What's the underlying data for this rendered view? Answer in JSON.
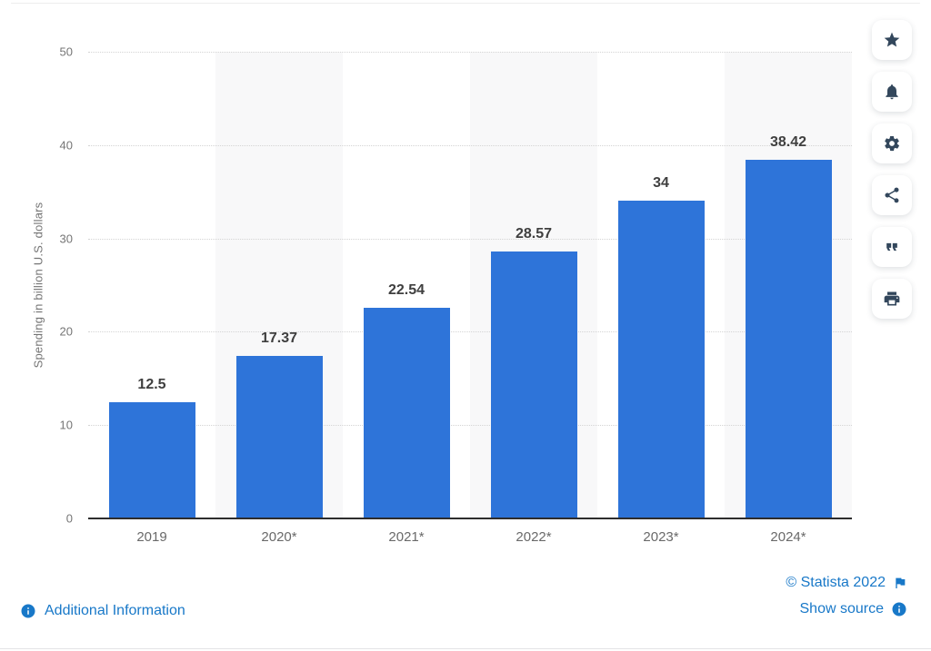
{
  "chart_data": {
    "type": "bar",
    "categories": [
      "2019",
      "2020*",
      "2021*",
      "2022*",
      "2023*",
      "2024*"
    ],
    "values": [
      12.5,
      17.37,
      22.54,
      28.57,
      34,
      38.42
    ],
    "value_labels": [
      "12.5",
      "17.37",
      "22.54",
      "28.57",
      "34",
      "38.42"
    ],
    "title": "",
    "xlabel": "",
    "ylabel": "Spending in billion U.S. dollars",
    "ylim": [
      0,
      50
    ],
    "yticks": [
      0,
      10,
      20,
      30,
      40,
      50
    ],
    "grid": "horizontal-dotted",
    "legend": "none",
    "bar_color": "#2e74d9",
    "band_color": "#f8f8f9"
  },
  "toolbar": {
    "icon_color": "#33475c",
    "buttons": [
      {
        "id": "favorite",
        "icon": "star-icon"
      },
      {
        "id": "alerts",
        "icon": "bell-icon"
      },
      {
        "id": "settings",
        "icon": "gear-icon"
      },
      {
        "id": "share",
        "icon": "share-icon"
      },
      {
        "id": "cite",
        "icon": "quote-icon"
      },
      {
        "id": "print",
        "icon": "print-icon"
      }
    ]
  },
  "footer": {
    "link_color": "#1878c8",
    "additional_information_label": "Additional Information",
    "copyright_label": "© Statista 2022",
    "show_source_label": "Show source"
  }
}
